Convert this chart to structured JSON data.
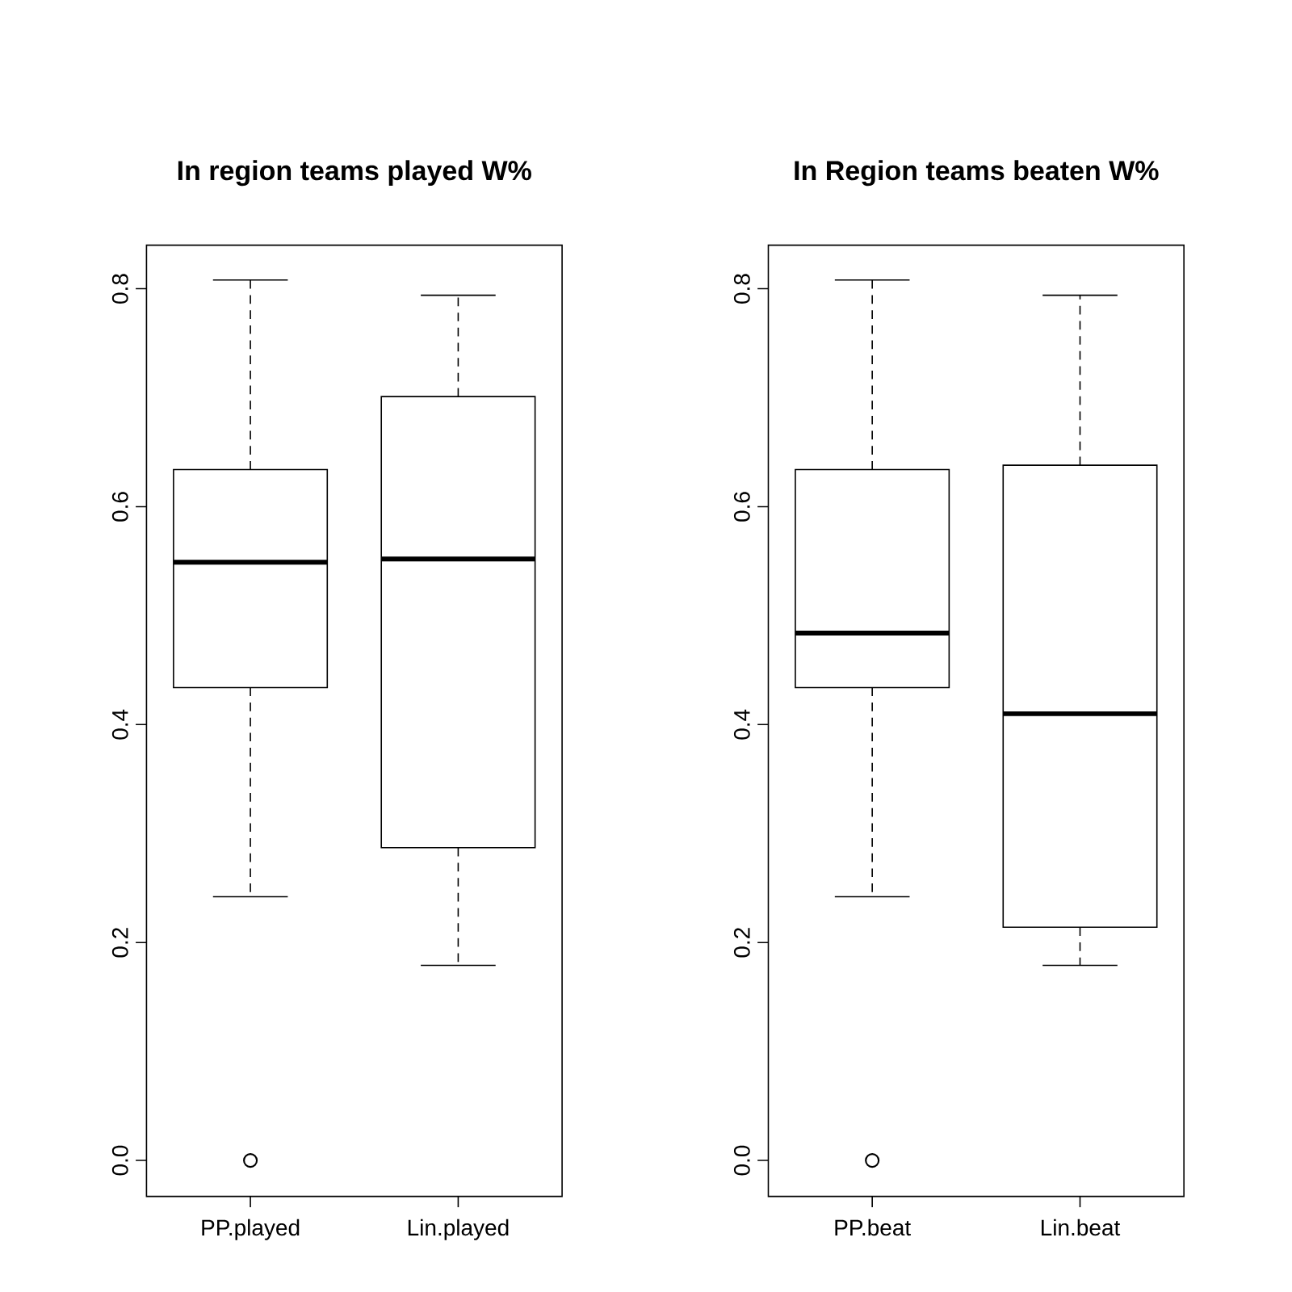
{
  "chart_data": [
    {
      "type": "box",
      "title": "In region teams played W%",
      "categories": [
        "PP.played",
        "Lin.played"
      ],
      "boxes": [
        {
          "low": 0.242,
          "q1": 0.434,
          "median": 0.549,
          "q3": 0.634,
          "high": 0.808,
          "outliers": [
            0.0
          ]
        },
        {
          "low": 0.179,
          "q1": 0.287,
          "median": 0.552,
          "q3": 0.701,
          "high": 0.794
        }
      ],
      "ylim": [
        -0.033,
        0.84
      ],
      "yticks": [
        {
          "value": 0,
          "label": "0.0"
        },
        {
          "value": 0.2,
          "label": "0.2"
        },
        {
          "value": 0.4,
          "label": "0.4"
        },
        {
          "value": 0.6,
          "label": "0.6"
        },
        {
          "value": 0.8,
          "label": "0.8"
        }
      ]
    },
    {
      "type": "box",
      "title": "In Region teams beaten W%",
      "categories": [
        "PP.beat",
        "Lin.beat"
      ],
      "boxes": [
        {
          "low": 0.242,
          "q1": 0.434,
          "median": 0.484,
          "q3": 0.634,
          "high": 0.808,
          "outliers": [
            0.0
          ]
        },
        {
          "low": 0.179,
          "q1": 0.214,
          "median": 0.41,
          "q3": 0.638,
          "high": 0.794
        }
      ],
      "ylim": [
        -0.033,
        0.84
      ],
      "yticks": [
        {
          "value": 0,
          "label": "0.0"
        },
        {
          "value": 0.2,
          "label": "0.2"
        },
        {
          "value": 0.4,
          "label": "0.4"
        },
        {
          "value": 0.6,
          "label": "0.6"
        },
        {
          "value": 0.8,
          "label": "0.8"
        }
      ]
    }
  ]
}
